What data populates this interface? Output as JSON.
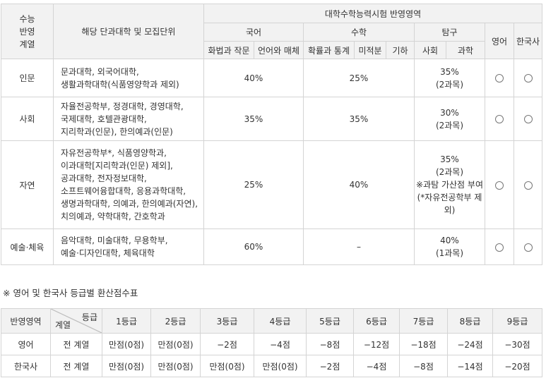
{
  "main_table": {
    "header": {
      "col_track": [
        "수능",
        "반영",
        "계열"
      ],
      "col_dept": "해당 단과대학 및 모집단위",
      "col_csat": "대학수학능력시험 반영영역",
      "korean": "국어",
      "math": "수학",
      "inquiry": "탐구",
      "english": "영어",
      "history": "한국사",
      "sub": [
        "화법과 작문",
        "언어와 매체",
        "확률과 통계",
        "미적분",
        "기하",
        "사회",
        "과학"
      ]
    },
    "rows": [
      {
        "track": "인문",
        "depts": [
          "문과대학, 외국어대학,",
          "생활과학대학(식품영양학과 제외)"
        ],
        "korean": "40%",
        "math": "25%",
        "inquiry": [
          "35%",
          "(2과목)"
        ],
        "english": "○",
        "history": "○"
      },
      {
        "track": "사회",
        "depts": [
          "자율전공학부, 정경대학, 경영대학,",
          "국제대학, 호텔관광대학,",
          "지리학과(인문), 한의예과(인문)"
        ],
        "korean": "35%",
        "math": "35%",
        "inquiry": [
          "30%",
          "(2과목)"
        ],
        "english": "○",
        "history": "○"
      },
      {
        "track": "자연",
        "depts": [
          "자유전공학부*, 식품영양학과,",
          "이과대학[지리학과(인문) 제외],",
          "공과대학, 전자정보대학,",
          "소프트웨어융합대학, 응용과학대학,",
          "생명과학대학, 의예과, 한의예과(자연),",
          "치의예과, 약학대학, 간호학과"
        ],
        "korean": "25%",
        "math": "40%",
        "inquiry": [
          "35%",
          "(2과목)",
          "※과탐 가산점 부여",
          "(*자유전공학부 제외)"
        ],
        "english": "○",
        "history": "○"
      },
      {
        "track": "예술·체육",
        "depts": [
          "음악대학, 미술대학, 무용학부,",
          "예술·디자인대학, 체육대학"
        ],
        "korean": "60%",
        "math": "–",
        "inquiry": [
          "40%",
          "(1과목)"
        ],
        "english": "○",
        "history": "○"
      }
    ]
  },
  "note": "※ 영어 및 한국사 등급별 환산점수표",
  "grade_table": {
    "corner_top": "등급",
    "corner_bottom": "계열",
    "col_area": "반영영역",
    "grades": [
      "1등급",
      "2등급",
      "3등급",
      "4등급",
      "5등급",
      "6등급",
      "7등급",
      "8등급",
      "9등급"
    ],
    "rows": [
      {
        "area": "영어",
        "track": "전 계열",
        "scores": [
          "만점(0점)",
          "만점(0점)",
          "−2점",
          "−4점",
          "−8점",
          "−12점",
          "−18점",
          "−24점",
          "−30점"
        ]
      },
      {
        "area": "한국사",
        "track": "전 계열",
        "scores": [
          "만점(0점)",
          "만점(0점)",
          "만점(0점)",
          "만점(0점)",
          "−2점",
          "−4점",
          "−8점",
          "−14점",
          "−20점"
        ]
      }
    ]
  }
}
